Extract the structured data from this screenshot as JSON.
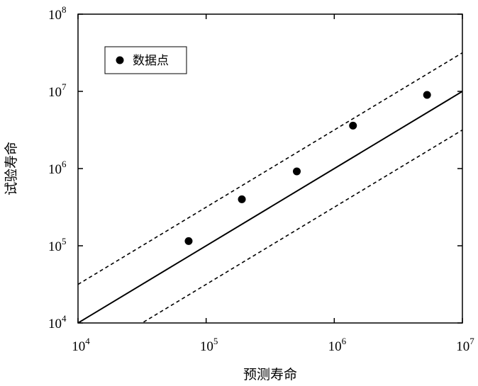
{
  "chart_data": {
    "type": "scatter",
    "xlabel": "预测寿命",
    "ylabel": "试验寿命",
    "x_scale": "log",
    "y_scale": "log",
    "xlim": [
      10000,
      10000000
    ],
    "ylim": [
      10000,
      100000000
    ],
    "x_ticks": [
      {
        "base": "10",
        "exp": "4",
        "value": 10000
      },
      {
        "base": "10",
        "exp": "5",
        "value": 100000
      },
      {
        "base": "10",
        "exp": "6",
        "value": 1000000
      },
      {
        "base": "10",
        "exp": "7",
        "value": 10000000
      }
    ],
    "y_ticks": [
      {
        "base": "10",
        "exp": "4",
        "value": 10000
      },
      {
        "base": "10",
        "exp": "5",
        "value": 100000
      },
      {
        "base": "10",
        "exp": "6",
        "value": 1000000
      },
      {
        "base": "10",
        "exp": "7",
        "value": 10000000
      },
      {
        "base": "10",
        "exp": "8",
        "value": 100000000
      }
    ],
    "series": [
      {
        "name": "数据点",
        "marker": "filled-circle",
        "color": "#000000",
        "x": [
          73000,
          190000,
          510000,
          1400000,
          5300000
        ],
        "y": [
          115000,
          400000,
          920000,
          3600000,
          9000000
        ]
      }
    ],
    "reference_lines": [
      {
        "style": "solid",
        "factor": 1
      },
      {
        "style": "dashed",
        "factor": 3.16
      },
      {
        "style": "dashed",
        "factor": 0.316
      }
    ],
    "legend": {
      "position": "top-left",
      "label": "数据点"
    },
    "grid": false
  }
}
